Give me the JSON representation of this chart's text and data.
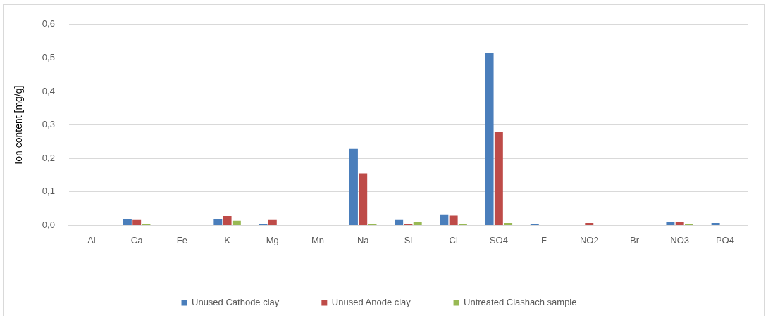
{
  "chart_data": {
    "type": "bar",
    "ylabel": "Ion content [mg/g]",
    "categories": [
      "Al",
      "Ca",
      "Fe",
      "K",
      "Mg",
      "Mn",
      "Na",
      "Si",
      "Cl",
      "SO4",
      "F",
      "NO2",
      "Br",
      "NO3",
      "PO4"
    ],
    "series": [
      {
        "name": "Unused Cathode clay",
        "color": "#4a7ebb",
        "values": [
          0,
          0.019,
          0,
          0.02,
          0.003,
          0,
          0.228,
          0.016,
          0.033,
          0.515,
          0.003,
          0,
          0,
          0.009,
          0.007
        ]
      },
      {
        "name": "Unused Anode clay",
        "color": "#be4b48",
        "values": [
          0,
          0.016,
          0,
          0.028,
          0.016,
          0,
          0.155,
          0.005,
          0.029,
          0.28,
          0,
          0.007,
          0,
          0.009,
          0
        ]
      },
      {
        "name": "Untreated Clashach sample",
        "color": "#98b954",
        "values": [
          0,
          0.005,
          0,
          0.014,
          0,
          0,
          0.003,
          0.011,
          0.005,
          0.007,
          0,
          0,
          0,
          0.003,
          0
        ]
      }
    ],
    "ylim": [
      0,
      0.6
    ],
    "yticks": [
      {
        "value": 0,
        "label": "0,0"
      },
      {
        "value": 0.1,
        "label": "0,1"
      },
      {
        "value": 0.2,
        "label": "0,2"
      },
      {
        "value": 0.3,
        "label": "0,3"
      },
      {
        "value": 0.4,
        "label": "0,4"
      },
      {
        "value": 0.5,
        "label": "0,5"
      },
      {
        "value": 0.6,
        "label": "0,6"
      }
    ],
    "grid": "y",
    "legend": "bottom"
  }
}
